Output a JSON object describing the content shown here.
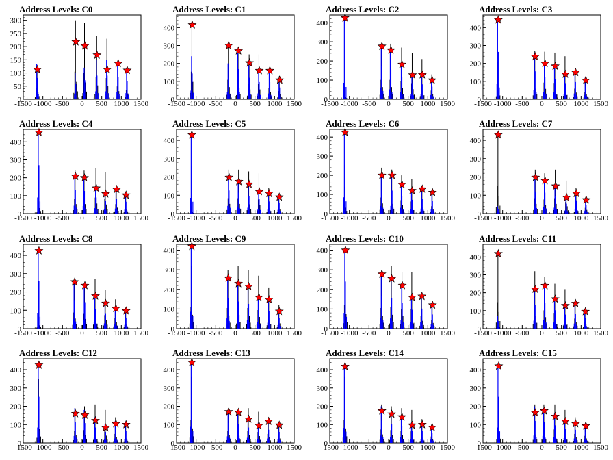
{
  "colors": {
    "background": "#ffffff",
    "axis": "#000000",
    "hist_black": "#000000",
    "hist_blue": "#0000ff",
    "marker_fill": "#ff0000",
    "marker_stroke": "#000000"
  },
  "icons": {
    "marker": "star-marker"
  },
  "chart_data": [
    {
      "type": "bar",
      "title": "Address Levels: C0",
      "x_ticks": [
        -1500,
        -1000,
        -500,
        0,
        500,
        1000,
        1500
      ],
      "xlim": [
        -1500,
        1500
      ],
      "ylim": [
        0,
        320
      ],
      "y_ticks": [
        0,
        50,
        100,
        150,
        200,
        250,
        300
      ],
      "peak_positions": [
        -1140,
        -160,
        70,
        380,
        640,
        920,
        1150
      ],
      "blue_heights": [
        135,
        100,
        120,
        150,
        150,
        140,
        115
      ],
      "black_heights": [
        120,
        300,
        290,
        240,
        230,
        140,
        100
      ],
      "marker_y": [
        113,
        218,
        203,
        168,
        113,
        136,
        110
      ]
    },
    {
      "type": "bar",
      "title": "Address Levels: C1",
      "x_ticks": [
        -1500,
        -1000,
        -500,
        0,
        500,
        1000,
        1500
      ],
      "xlim": [
        -1500,
        1500
      ],
      "ylim": [
        0,
        470
      ],
      "y_ticks": [
        0,
        100,
        200,
        300,
        400
      ],
      "peak_positions": [
        -1100,
        -170,
        80,
        360,
        610,
        880,
        1130
      ],
      "blue_heights": [
        240,
        200,
        280,
        200,
        160,
        160,
        110
      ],
      "black_heights": [
        440,
        310,
        290,
        250,
        250,
        180,
        130
      ],
      "marker_y": [
        415,
        300,
        270,
        203,
        160,
        160,
        107
      ]
    },
    {
      "type": "bar",
      "title": "Address Levels: C2",
      "x_ticks": [
        -1500,
        -1000,
        -500,
        0,
        500,
        1000,
        1500
      ],
      "xlim": [
        -1500,
        1500
      ],
      "ylim": [
        0,
        440
      ],
      "y_ticks": [
        0,
        100,
        200,
        300,
        400
      ],
      "peak_positions": [
        -1110,
        -170,
        60,
        340,
        610,
        860,
        1110
      ],
      "blue_heights": [
        430,
        290,
        260,
        190,
        140,
        130,
        110
      ],
      "black_heights": [
        65,
        290,
        290,
        270,
        240,
        210,
        130
      ],
      "marker_y": [
        425,
        277,
        257,
        182,
        127,
        128,
        100
      ]
    },
    {
      "type": "bar",
      "title": "Address Levels: C3",
      "x_ticks": [
        -1500,
        -1000,
        -500,
        0,
        500,
        1000,
        1500
      ],
      "xlim": [
        -1500,
        1500
      ],
      "ylim": [
        0,
        470
      ],
      "y_ticks": [
        0,
        100,
        200,
        300,
        400
      ],
      "peak_positions": [
        -1110,
        -170,
        80,
        340,
        600,
        860,
        1120
      ],
      "blue_heights": [
        440,
        260,
        210,
        190,
        150,
        160,
        120
      ],
      "black_heights": [
        210,
        270,
        265,
        260,
        240,
        170,
        120
      ],
      "marker_y": [
        443,
        238,
        200,
        185,
        140,
        150,
        106
      ]
    },
    {
      "type": "bar",
      "title": "Address Levels: C4",
      "x_ticks": [
        -1500,
        -1000,
        -500,
        0,
        500,
        1000,
        1500
      ],
      "xlim": [
        -1500,
        1500
      ],
      "ylim": [
        0,
        470
      ],
      "y_ticks": [
        0,
        100,
        200,
        300,
        400
      ],
      "peak_positions": [
        -1100,
        -170,
        60,
        360,
        600,
        880,
        1120
      ],
      "blue_heights": [
        450,
        220,
        210,
        150,
        120,
        140,
        110
      ],
      "black_heights": [
        140,
        240,
        240,
        255,
        230,
        150,
        110
      ],
      "marker_y": [
        453,
        208,
        200,
        142,
        110,
        135,
        103
      ]
    },
    {
      "type": "bar",
      "title": "Address Levels: C5",
      "x_ticks": [
        -1500,
        -1000,
        -500,
        0,
        500,
        1000,
        1500
      ],
      "xlim": [
        -1500,
        1500
      ],
      "ylim": [
        0,
        460
      ],
      "y_ticks": [
        0,
        100,
        200,
        300,
        400
      ],
      "peak_positions": [
        -1110,
        -160,
        90,
        350,
        610,
        860,
        1120
      ],
      "blue_heights": [
        430,
        210,
        190,
        160,
        130,
        110,
        100
      ],
      "black_heights": [
        40,
        240,
        240,
        230,
        220,
        140,
        100
      ],
      "marker_y": [
        430,
        198,
        175,
        160,
        120,
        110,
        90
      ]
    },
    {
      "type": "bar",
      "title": "Address Levels: C6",
      "x_ticks": [
        -1500,
        -1000,
        -500,
        0,
        500,
        1000,
        1500
      ],
      "xlim": [
        -1500,
        1500
      ],
      "ylim": [
        0,
        440
      ],
      "y_ticks": [
        0,
        100,
        200,
        300,
        400
      ],
      "peak_positions": [
        -1110,
        -170,
        90,
        340,
        600,
        860,
        1120
      ],
      "blue_heights": [
        425,
        200,
        200,
        150,
        120,
        130,
        110
      ],
      "black_heights": [
        140,
        240,
        230,
        200,
        180,
        145,
        110
      ],
      "marker_y": [
        425,
        200,
        200,
        152,
        120,
        128,
        110
      ]
    },
    {
      "type": "bar",
      "title": "Address Levels: C7",
      "x_ticks": [
        -1500,
        -1000,
        -500,
        0,
        500,
        1000,
        1500
      ],
      "xlim": [
        -1500,
        1500
      ],
      "ylim": [
        0,
        460
      ],
      "y_ticks": [
        0,
        100,
        200,
        300,
        400
      ],
      "peak_positions": [
        -1110,
        -160,
        80,
        350,
        630,
        880,
        1130
      ],
      "blue_heights": [
        40,
        200,
        190,
        160,
        90,
        120,
        80
      ],
      "black_heights": [
        430,
        240,
        220,
        240,
        180,
        140,
        90
      ],
      "marker_y": [
        430,
        198,
        180,
        150,
        88,
        110,
        75
      ]
    },
    {
      "type": "bar",
      "title": "Address Levels: C8",
      "x_ticks": [
        -1500,
        -1000,
        -500,
        0,
        500,
        1000,
        1500
      ],
      "xlim": [
        -1500,
        1500
      ],
      "ylim": [
        0,
        460
      ],
      "y_ticks": [
        0,
        100,
        200,
        300,
        400
      ],
      "peak_positions": [
        -1100,
        -190,
        70,
        340,
        600,
        860,
        1120
      ],
      "blue_heights": [
        430,
        260,
        240,
        180,
        140,
        110,
        100
      ],
      "black_heights": [
        80,
        250,
        240,
        270,
        210,
        160,
        110
      ],
      "marker_y": [
        425,
        255,
        235,
        178,
        138,
        110,
        97
      ]
    },
    {
      "type": "bar",
      "title": "Address Levels: C9",
      "x_ticks": [
        -1500,
        -1000,
        -500,
        0,
        500,
        1000,
        1500
      ],
      "xlim": [
        -1500,
        1500
      ],
      "ylim": [
        0,
        430
      ],
      "y_ticks": [
        0,
        100,
        200,
        300,
        400
      ],
      "peak_positions": [
        -1110,
        -180,
        80,
        340,
        600,
        860,
        1120
      ],
      "blue_heights": [
        430,
        260,
        230,
        210,
        160,
        150,
        90
      ],
      "black_heights": [
        320,
        300,
        320,
        300,
        270,
        210,
        120
      ],
      "marker_y": [
        420,
        258,
        230,
        215,
        160,
        148,
        88
      ]
    },
    {
      "type": "bar",
      "title": "Address Levels: C10",
      "x_ticks": [
        -1500,
        -1000,
        -500,
        0,
        500,
        1000,
        1500
      ],
      "xlim": [
        -1500,
        1500
      ],
      "ylim": [
        0,
        430
      ],
      "y_ticks": [
        0,
        100,
        200,
        300,
        400
      ],
      "peak_positions": [
        -1100,
        -170,
        80,
        350,
        600,
        850,
        1120
      ],
      "blue_heights": [
        400,
        280,
        260,
        220,
        160,
        170,
        120
      ],
      "black_heights": [
        340,
        300,
        320,
        290,
        290,
        180,
        130
      ],
      "marker_y": [
        400,
        278,
        255,
        220,
        160,
        165,
        120
      ]
    },
    {
      "type": "bar",
      "title": "Address Levels: C11",
      "x_ticks": [
        -1500,
        -1000,
        -500,
        0,
        500,
        1000,
        1500
      ],
      "xlim": [
        -1500,
        1500
      ],
      "ylim": [
        0,
        470
      ],
      "y_ticks": [
        0,
        100,
        200,
        300,
        400
      ],
      "peak_positions": [
        -1110,
        -170,
        80,
        340,
        600,
        860,
        1110
      ],
      "blue_heights": [
        70,
        220,
        240,
        170,
        130,
        140,
        100
      ],
      "black_heights": [
        420,
        320,
        290,
        250,
        220,
        160,
        110
      ],
      "marker_y": [
        418,
        220,
        240,
        165,
        128,
        140,
        95
      ]
    },
    {
      "type": "bar",
      "title": "Address Levels: C12",
      "x_ticks": [
        -1500,
        -1000,
        -500,
        0,
        500,
        1000,
        1500
      ],
      "xlim": [
        -1500,
        1500
      ],
      "ylim": [
        0,
        460
      ],
      "y_ticks": [
        0,
        100,
        200,
        300,
        400
      ],
      "peak_positions": [
        -1100,
        -170,
        70,
        340,
        600,
        860,
        1120
      ],
      "blue_heights": [
        420,
        190,
        180,
        140,
        100,
        120,
        110
      ],
      "black_heights": [
        350,
        190,
        200,
        210,
        180,
        140,
        110
      ],
      "marker_y": [
        425,
        160,
        152,
        122,
        83,
        105,
        100
      ]
    },
    {
      "type": "bar",
      "title": "Address Levels: C13",
      "x_ticks": [
        -1500,
        -1000,
        -500,
        0,
        500,
        1000,
        1500
      ],
      "xlim": [
        -1500,
        1500
      ],
      "ylim": [
        0,
        460
      ],
      "y_ticks": [
        0,
        100,
        200,
        300,
        400
      ],
      "peak_positions": [
        -1110,
        -170,
        80,
        340,
        600,
        850,
        1120
      ],
      "blue_heights": [
        440,
        180,
        170,
        140,
        110,
        120,
        100
      ],
      "black_heights": [
        360,
        190,
        180,
        190,
        170,
        140,
        110
      ],
      "marker_y": [
        440,
        170,
        167,
        130,
        95,
        118,
        97
      ]
    },
    {
      "type": "bar",
      "title": "Address Levels: C14",
      "x_ticks": [
        -1500,
        -1000,
        -500,
        0,
        500,
        1000,
        1500
      ],
      "xlim": [
        -1500,
        1500
      ],
      "ylim": [
        0,
        460
      ],
      "y_ticks": [
        0,
        100,
        200,
        300,
        400
      ],
      "peak_positions": [
        -1110,
        -170,
        80,
        340,
        600,
        860,
        1110
      ],
      "blue_heights": [
        410,
        200,
        170,
        150,
        110,
        110,
        90
      ],
      "black_heights": [
        360,
        210,
        200,
        190,
        180,
        130,
        100
      ],
      "marker_y": [
        418,
        175,
        157,
        142,
        97,
        100,
        85
      ]
    },
    {
      "type": "bar",
      "title": "Address Levels: C15",
      "x_ticks": [
        -1500,
        -1000,
        -500,
        0,
        500,
        1000,
        1500
      ],
      "xlim": [
        -1500,
        1500
      ],
      "ylim": [
        0,
        460
      ],
      "y_ticks": [
        0,
        100,
        200,
        300,
        400
      ],
      "peak_positions": [
        -1100,
        -170,
        60,
        340,
        600,
        860,
        1120
      ],
      "blue_heights": [
        420,
        200,
        190,
        160,
        130,
        120,
        100
      ],
      "black_heights": [
        230,
        210,
        210,
        210,
        180,
        140,
        110
      ],
      "marker_y": [
        420,
        165,
        175,
        145,
        118,
        105,
        93
      ]
    }
  ]
}
